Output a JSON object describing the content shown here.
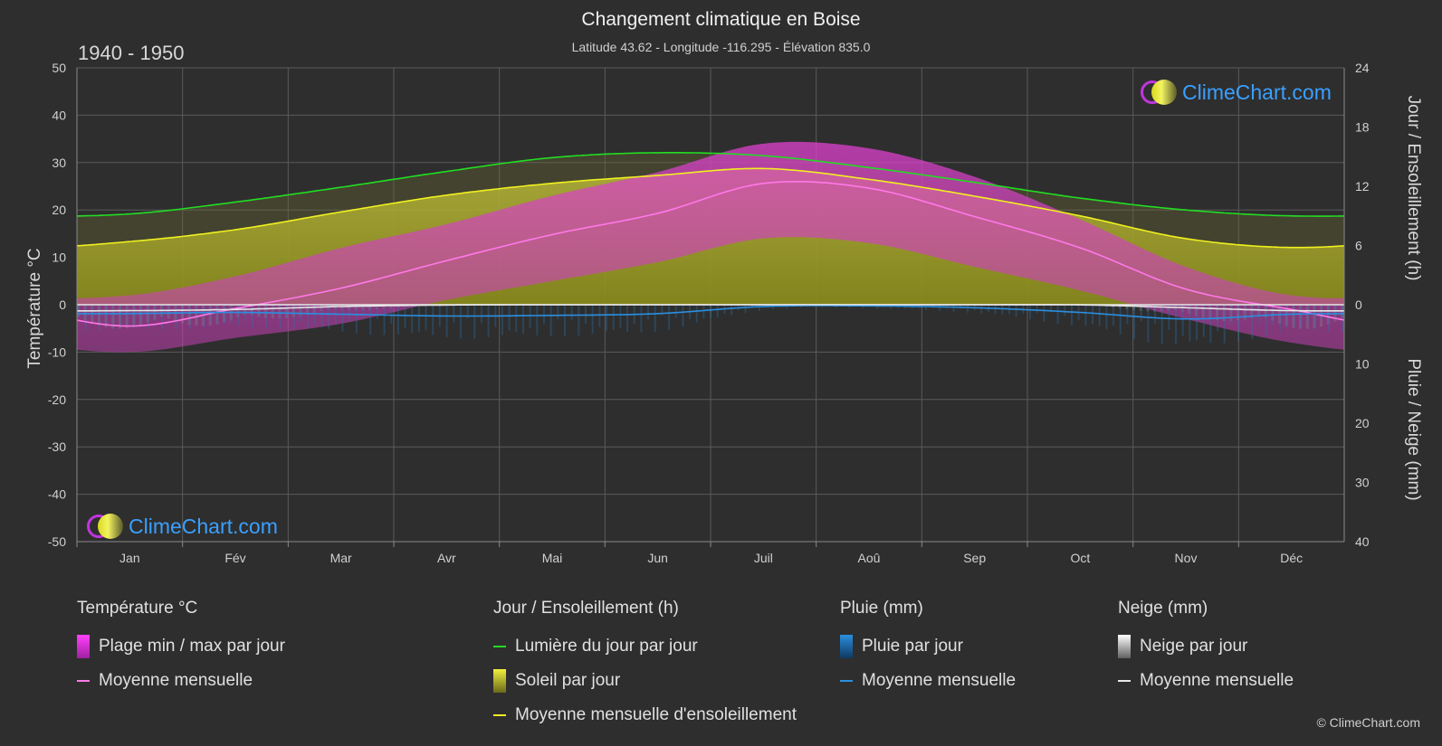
{
  "header": {
    "title": "Changement climatique en Boise",
    "subtitle": "Latitude 43.62 - Longitude -116.295 - Élévation 835.0",
    "period": "1940 - 1950"
  },
  "brand": {
    "name": "ClimeChart.com",
    "copyright": "© ClimeChart.com"
  },
  "colors": {
    "background": "#2e2e2e",
    "temp_range": "#e030d0",
    "temp_mean": "#ff78e8",
    "daylight": "#22dd22",
    "sunshine_fill": "#b4b41e",
    "sunshine_mean": "#f0f020",
    "rain": "#2a8fe0",
    "snow": "#e8e8e8"
  },
  "chart_data": {
    "type": "line",
    "categories": [
      "Jan",
      "Fév",
      "Mar",
      "Avr",
      "Mai",
      "Jun",
      "Juil",
      "Aoû",
      "Sep",
      "Oct",
      "Nov",
      "Déc"
    ],
    "y_left": {
      "label": "Température °C",
      "ylim": [
        -50,
        50
      ],
      "ticks": [
        "50",
        "40",
        "30",
        "20",
        "10",
        "0",
        "-10",
        "-20",
        "-30",
        "-40",
        "-50"
      ]
    },
    "y_right_top": {
      "label": "Jour / Ensoleillement (h)",
      "ylim": [
        0,
        24
      ],
      "ticks": [
        "24",
        "18",
        "12",
        "6",
        "0"
      ]
    },
    "y_right_bottom": {
      "label": "Pluie / Neige (mm)",
      "ylim": [
        0,
        40
      ],
      "ticks": [
        "10",
        "20",
        "30",
        "40"
      ]
    },
    "grid": true,
    "series": [
      {
        "name": "Lumière du jour par jour",
        "unit": "h",
        "values": [
          9.2,
          10.4,
          11.9,
          13.5,
          14.9,
          15.4,
          15.1,
          13.9,
          12.4,
          10.8,
          9.6,
          9.0
        ]
      },
      {
        "name": "Moyenne mensuelle d'ensoleillement",
        "unit": "h",
        "values": [
          6.4,
          7.6,
          9.4,
          11.1,
          12.3,
          13.1,
          13.8,
          12.7,
          11.0,
          9.0,
          6.7,
          5.8
        ]
      },
      {
        "name": "Moyenne mensuelle",
        "kind": "temperature",
        "unit": "°C",
        "values": [
          -4.5,
          -0.8,
          3.5,
          9.3,
          14.8,
          19.3,
          25.6,
          24.6,
          18.6,
          12.0,
          3.3,
          -1.0
        ]
      },
      {
        "name": "Plage min / max par jour",
        "unit": "°C",
        "max": [
          2,
          6,
          12,
          17,
          23,
          28,
          34,
          33,
          27,
          18,
          8,
          2
        ],
        "min": [
          -10,
          -7,
          -4,
          1,
          5,
          9,
          14,
          13,
          8,
          3,
          -3,
          -8
        ]
      },
      {
        "name": "Moyenne mensuelle",
        "kind": "rain",
        "unit": "mm",
        "values": [
          1.5,
          1.3,
          1.6,
          1.9,
          1.8,
          1.5,
          0.3,
          0.2,
          0.5,
          1.3,
          2.4,
          1.6
        ]
      },
      {
        "name": "Moyenne mensuelle",
        "kind": "snow",
        "unit": "mm",
        "values": [
          1.0,
          0.8,
          0.3,
          0.05,
          0,
          0,
          0,
          0,
          0,
          0.02,
          0.5,
          1.0
        ]
      }
    ]
  },
  "legend": {
    "temperature": {
      "heading": "Température °C",
      "items": [
        "Plage min / max par jour",
        "Moyenne mensuelle"
      ]
    },
    "sun": {
      "heading": "Jour / Ensoleillement (h)",
      "items": [
        "Lumière du jour par jour",
        "Soleil par jour",
        "Moyenne mensuelle d'ensoleillement"
      ]
    },
    "rain": {
      "heading": "Pluie (mm)",
      "items": [
        "Pluie par jour",
        "Moyenne mensuelle"
      ]
    },
    "snow": {
      "heading": "Neige (mm)",
      "items": [
        "Neige par jour",
        "Moyenne mensuelle"
      ]
    }
  }
}
